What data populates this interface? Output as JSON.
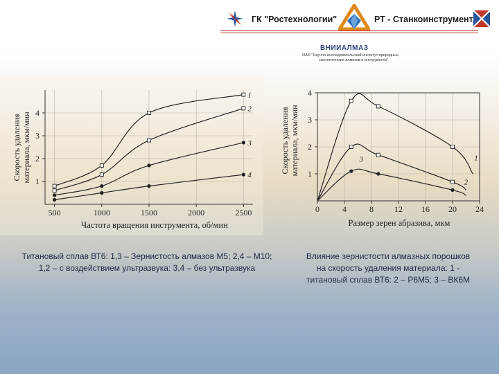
{
  "header": {
    "org_left": "ГК \"Ростехнологии\"",
    "org_right": "РТ - Станкоинструмент",
    "institute": "ВНИИАЛМАЗ",
    "institute_sub_1": "ОАО \"Научно-исследовательский институт природных,",
    "institute_sub_2": "синтетических алмазов и инструмента\"",
    "accent_color": "#c0392b",
    "brand_blue": "#2a5599"
  },
  "captions": {
    "left": "Титановый сплав ВТ6: 1,3 – Зернистость алмазов М5; 2,4 – М10; 1,2 – с воздействием ультразвука: 3,4 – без ультразвука",
    "right": "Влияние зернистости алмазных порошков на скорость удаления материала: 1 - титановый сплав ВТ6: 2 – Р6М5; 3 – ВК6М"
  },
  "chart_data": [
    {
      "type": "line",
      "xlabel": "Частота вращения инструмента, об/мин",
      "ylabel_1": "Скорость удаления",
      "ylabel_2": "материала, мкм/мин",
      "xlim": [
        400,
        2600
      ],
      "ylim": [
        0,
        5
      ],
      "xticks": [
        500,
        1000,
        1500,
        2000,
        2500
      ],
      "yticks": [
        1,
        2,
        3,
        4
      ],
      "grid": true,
      "series": [
        {
          "name": "1",
          "marker": "open",
          "x": [
            500,
            1000,
            1500,
            2500
          ],
          "y": [
            0.8,
            1.7,
            4.0,
            4.8
          ]
        },
        {
          "name": "2",
          "marker": "open",
          "x": [
            500,
            1000,
            1500,
            2500
          ],
          "y": [
            0.6,
            1.3,
            2.8,
            4.2
          ]
        },
        {
          "name": "3",
          "marker": "filled",
          "x": [
            500,
            1000,
            1500,
            2500
          ],
          "y": [
            0.4,
            0.8,
            1.7,
            2.7
          ]
        },
        {
          "name": "4",
          "marker": "filled",
          "x": [
            500,
            1000,
            1500,
            2500
          ],
          "y": [
            0.2,
            0.5,
            0.8,
            1.3
          ]
        }
      ]
    },
    {
      "type": "line",
      "xlabel": "Размер зерен абразива, мкм",
      "ylabel_1": "Скорость удаления",
      "ylabel_2": "материала, мкм/мин",
      "xlim": [
        0,
        24
      ],
      "ylim": [
        0,
        4
      ],
      "xticks": [
        0,
        4,
        8,
        12,
        16,
        20,
        24
      ],
      "yticks": [
        1,
        2,
        3,
        4
      ],
      "grid": true,
      "series": [
        {
          "name": "1",
          "marker": "open",
          "x": [
            0,
            5,
            9,
            20,
            23
          ],
          "y": [
            0,
            3.7,
            3.5,
            2.0,
            1.0
          ]
        },
        {
          "name": "2",
          "marker": "open",
          "x": [
            0,
            5,
            9,
            20,
            22
          ],
          "y": [
            0,
            2.0,
            1.7,
            0.7,
            0.4
          ]
        },
        {
          "name": "3",
          "marker": "filled",
          "x": [
            0,
            5,
            9,
            20,
            22
          ],
          "y": [
            0,
            1.1,
            1.0,
            0.4,
            0.2
          ]
        }
      ]
    }
  ]
}
